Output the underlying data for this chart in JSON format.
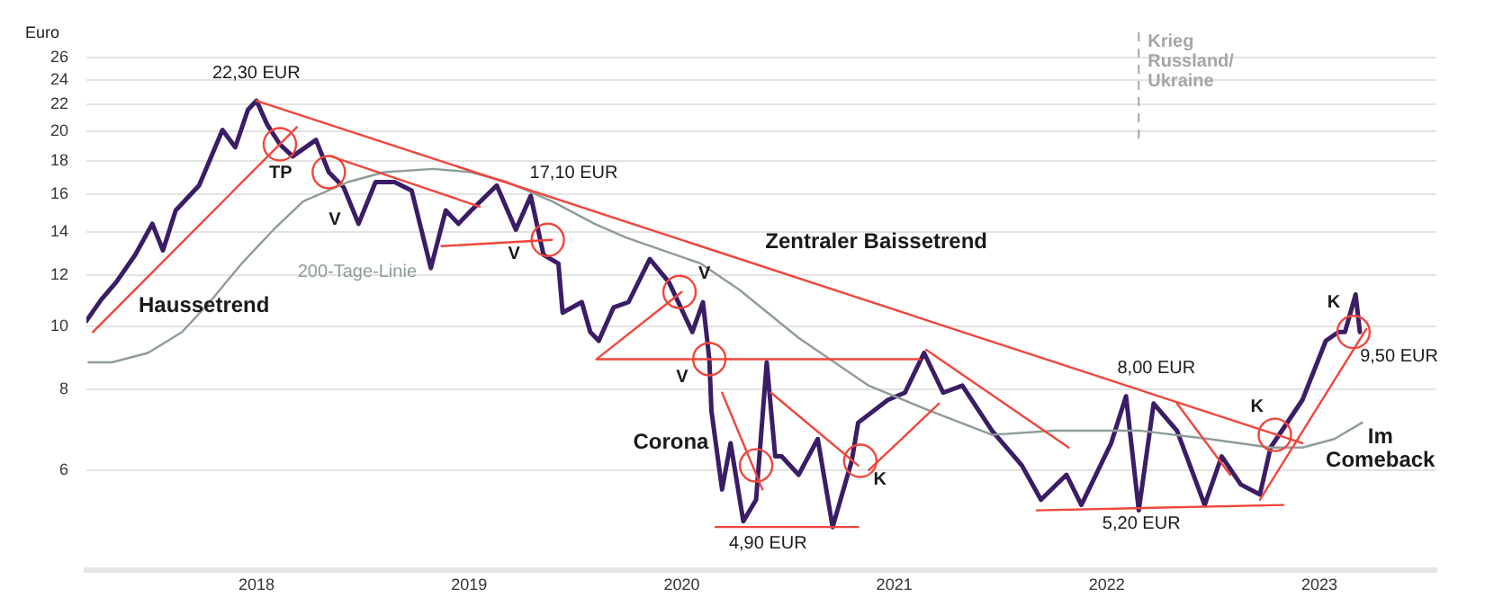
{
  "chart_data": {
    "type": "line",
    "ylabel": "Euro",
    "log": true,
    "grid": "y",
    "marker": "none",
    "xlim": [
      2017.2,
      2023.55
    ],
    "xticks": [
      2018,
      2019,
      2020,
      2021,
      2022,
      2023
    ],
    "ylim": [
      4.2,
      26
    ],
    "yticks": [
      6,
      8,
      10,
      12,
      14,
      16,
      18,
      20,
      22,
      24,
      26
    ],
    "series": [
      {
        "color": "#3b1d66",
        "x": [
          2017.2,
          2017.27,
          2017.34,
          2017.43,
          2017.51,
          2017.56,
          2017.62,
          2017.73,
          2017.84,
          2017.9,
          2017.96,
          2018.0,
          2018.05,
          2018.11,
          2018.17,
          2018.28,
          2018.34,
          2018.41,
          2018.48,
          2018.56,
          2018.65,
          2018.73,
          2018.82,
          2018.89,
          2018.95,
          2019.01,
          2019.13,
          2019.22,
          2019.29,
          2019.35,
          2019.42,
          2019.44,
          2019.53,
          2019.57,
          2019.61,
          2019.68,
          2019.75,
          2019.85,
          2019.94,
          2020.05,
          2020.1,
          2020.13,
          2020.14,
          2020.19,
          2020.23,
          2020.29,
          2020.35,
          2020.4,
          2020.44,
          2020.47,
          2020.55,
          2020.64,
          2020.71,
          2020.8,
          2020.83,
          2020.97,
          2021.05,
          2021.14,
          2021.23,
          2021.32,
          2021.46,
          2021.6,
          2021.69,
          2021.81,
          2021.88,
          2022.02,
          2022.09,
          2022.15,
          2022.22,
          2022.33,
          2022.46,
          2022.54,
          2022.63,
          2022.72,
          2022.77,
          2022.92,
          2023.03,
          2023.09,
          2023.12,
          2023.17,
          2023.19
        ],
        "values": [
          10.2,
          11.0,
          11.7,
          12.9,
          14.4,
          13.1,
          15.1,
          16.5,
          20.1,
          18.9,
          21.6,
          22.3,
          20.5,
          19.1,
          18.3,
          19.4,
          17.3,
          16.4,
          14.4,
          16.7,
          16.7,
          16.2,
          12.3,
          15.1,
          14.4,
          15.1,
          16.5,
          14.1,
          15.9,
          12.9,
          12.5,
          10.5,
          10.9,
          9.8,
          9.5,
          10.7,
          10.9,
          12.7,
          11.7,
          9.8,
          10.9,
          8.9,
          7.4,
          5.6,
          6.6,
          5.0,
          5.4,
          8.8,
          6.3,
          6.3,
          5.9,
          6.7,
          4.9,
          6.2,
          7.1,
          7.7,
          7.9,
          9.1,
          7.9,
          8.1,
          6.9,
          6.1,
          5.4,
          5.9,
          5.3,
          6.6,
          7.8,
          5.2,
          7.6,
          6.9,
          5.3,
          6.3,
          5.7,
          5.5,
          6.5,
          7.7,
          9.5,
          9.8,
          9.8,
          11.2,
          9.8
        ]
      },
      {
        "color": "#8e9c99",
        "x": [
          2017.21,
          2017.32,
          2017.49,
          2017.65,
          2017.78,
          2017.93,
          2018.08,
          2018.22,
          2018.43,
          2018.6,
          2018.83,
          2019.01,
          2019.18,
          2019.39,
          2019.59,
          2019.74,
          2020.09,
          2020.27,
          2020.55,
          2020.88,
          2021.17,
          2021.46,
          2021.75,
          2022.16,
          2022.48,
          2022.77,
          2022.92,
          2023.07,
          2023.2
        ],
        "values": [
          8.8,
          8.8,
          9.1,
          9.8,
          10.9,
          12.5,
          14.1,
          15.6,
          16.7,
          17.3,
          17.5,
          17.3,
          16.7,
          15.6,
          14.4,
          13.7,
          12.5,
          11.4,
          9.6,
          8.1,
          7.4,
          6.8,
          6.9,
          6.9,
          6.7,
          6.5,
          6.5,
          6.7,
          7.1
        ]
      },
      {
        "color": "#f0463c",
        "x": [
          2017.23,
          2018.19
        ],
        "values": [
          9.8,
          20.3
        ]
      },
      {
        "color": "#f0463c",
        "x": [
          2018.0,
          2022.92
        ],
        "values": [
          22.3,
          6.6
        ]
      },
      {
        "color": "#f0463c",
        "x": [
          2018.35,
          2019.05
        ],
        "values": [
          18.3,
          15.3
        ]
      },
      {
        "color": "#f0463c",
        "x": [
          2018.87,
          2019.39
        ],
        "values": [
          13.3,
          13.6
        ]
      },
      {
        "color": "#f0463c",
        "x": [
          2019.6,
          2020.0
        ],
        "values": [
          8.9,
          11.3
        ]
      },
      {
        "color": "#f0463c",
        "x": [
          2019.6,
          2021.12
        ],
        "values": [
          8.9,
          8.9
        ]
      },
      {
        "color": "#f0463c",
        "x": [
          2021.15,
          2021.82
        ],
        "values": [
          9.2,
          6.5
        ]
      },
      {
        "color": "#f0463c",
        "x": [
          2020.19,
          2020.38
        ],
        "values": [
          7.9,
          5.6
        ]
      },
      {
        "color": "#f0463c",
        "x": [
          2020.42,
          2020.83
        ],
        "values": [
          7.9,
          6.1
        ]
      },
      {
        "color": "#f0463c",
        "x": [
          2020.88,
          2021.21
        ],
        "values": [
          6.0,
          7.6
        ]
      },
      {
        "color": "#f0463c",
        "x": [
          2020.16,
          2020.83
        ],
        "values": [
          4.9,
          4.9
        ]
      },
      {
        "color": "#f0463c",
        "x": [
          2021.67,
          2022.83
        ],
        "values": [
          5.2,
          5.3
        ]
      },
      {
        "color": "#f0463c",
        "x": [
          2022.33,
          2022.58
        ],
        "values": [
          7.6,
          5.9
        ]
      },
      {
        "color": "#f0463c",
        "x": [
          2022.72,
          2023.22
        ],
        "values": [
          5.4,
          9.9
        ]
      },
      {
        "color": "#f0463c",
        "type": "scatter",
        "marker": "circle",
        "x": [
          2018.11,
          2018.34,
          2019.37,
          2019.99,
          2020.13,
          2020.35,
          2020.84,
          2022.79,
          2023.16
        ],
        "values": [
          19.1,
          17.3,
          13.6,
          11.3,
          8.9,
          6.1,
          6.2,
          6.8,
          9.8
        ]
      }
    ],
    "ref_lines": [
      {
        "axis": "x",
        "value": 2022.15,
        "label": "Krieg\nRussland/\nUkraine",
        "color": "#a6a6a6",
        "line_style": "dashed"
      }
    ],
    "annotations": [
      "22,30 EUR",
      "TP",
      "V",
      "V",
      "17,10 EUR",
      "V",
      "V",
      "Haussetrend",
      "200-Tage-Linie",
      "Zentraler Baissetrend",
      "Corona",
      "K",
      "4,90 EUR",
      "8,00 EUR",
      "5,20 EUR",
      "K",
      "K",
      "9,50 EUR",
      "Im\nComeback"
    ]
  }
}
